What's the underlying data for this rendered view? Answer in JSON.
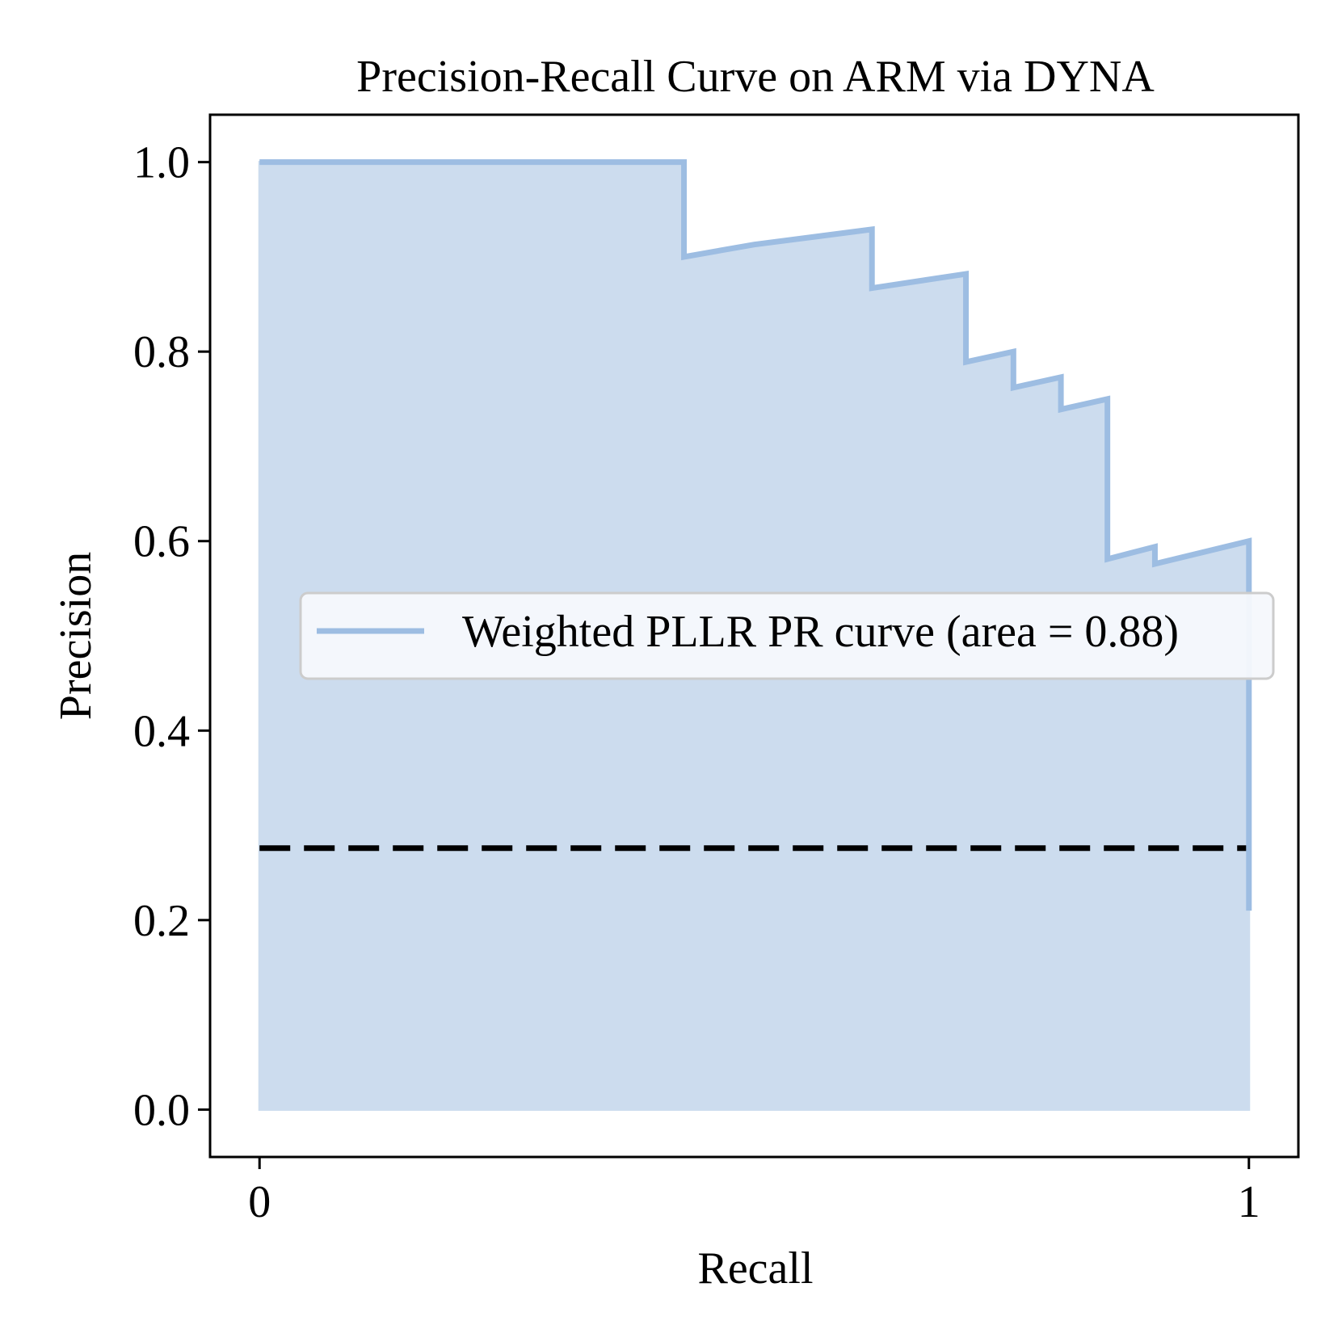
{
  "chart_data": {
    "type": "area",
    "title": "Precision-Recall Curve on ARM via DYNA",
    "xlabel": "Recall",
    "ylabel": "Precision",
    "xlim": [
      -0.05,
      1.05
    ],
    "ylim": [
      -0.05,
      1.05
    ],
    "x_ticks": [
      0,
      1
    ],
    "x_tick_labels": [
      "0",
      "1"
    ],
    "y_ticks": [
      0.0,
      0.2,
      0.4,
      0.6,
      0.8,
      1.0
    ],
    "y_tick_labels": [
      "0.0",
      "0.2",
      "0.4",
      "0.6",
      "0.8",
      "1.0"
    ],
    "grid": false,
    "legend_position": "center-right",
    "series": [
      {
        "name": "Weighted PLLR PR curve (area = 0.88)",
        "color": "#9dbde2",
        "fill_color": "#ccdcee",
        "x": [
          0.0,
          0.0,
          0.429,
          0.429,
          0.5,
          0.619,
          0.619,
          0.714,
          0.714,
          0.762,
          0.762,
          0.81,
          0.81,
          0.857,
          0.857,
          0.905,
          0.905,
          1.0,
          1.0
        ],
        "y": [
          1.0,
          1.0,
          1.0,
          0.9,
          0.913,
          0.929,
          0.867,
          0.882,
          0.789,
          0.8,
          0.762,
          0.773,
          0.739,
          0.75,
          0.581,
          0.594,
          0.576,
          0.6,
          0.21
        ]
      },
      {
        "name": "",
        "color": "#000000",
        "style": "dashed",
        "x": [
          0.0,
          1.0
        ],
        "y": [
          0.276,
          0.276
        ]
      }
    ]
  }
}
